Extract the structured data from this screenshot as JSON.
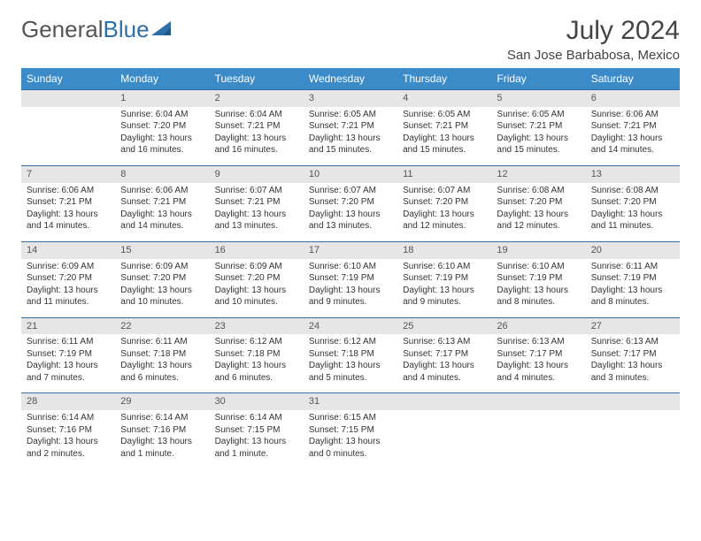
{
  "brand": {
    "part1": "General",
    "part2": "Blue"
  },
  "title": "July 2024",
  "location": "San Jose Barbabosa, Mexico",
  "colors": {
    "header_bg": "#3b8bc9",
    "header_text": "#ffffff",
    "daynum_bg": "#e6e6e6",
    "row_border": "#2f6fa7",
    "body_text": "#333333",
    "title_text": "#444444",
    "logo_gray": "#555555",
    "logo_blue": "#2f6fa7"
  },
  "day_headers": [
    "Sunday",
    "Monday",
    "Tuesday",
    "Wednesday",
    "Thursday",
    "Friday",
    "Saturday"
  ],
  "weeks": [
    {
      "nums": [
        "",
        "1",
        "2",
        "3",
        "4",
        "5",
        "6"
      ],
      "cells": [
        [],
        [
          "Sunrise: 6:04 AM",
          "Sunset: 7:20 PM",
          "Daylight: 13 hours and 16 minutes."
        ],
        [
          "Sunrise: 6:04 AM",
          "Sunset: 7:21 PM",
          "Daylight: 13 hours and 16 minutes."
        ],
        [
          "Sunrise: 6:05 AM",
          "Sunset: 7:21 PM",
          "Daylight: 13 hours and 15 minutes."
        ],
        [
          "Sunrise: 6:05 AM",
          "Sunset: 7:21 PM",
          "Daylight: 13 hours and 15 minutes."
        ],
        [
          "Sunrise: 6:05 AM",
          "Sunset: 7:21 PM",
          "Daylight: 13 hours and 15 minutes."
        ],
        [
          "Sunrise: 6:06 AM",
          "Sunset: 7:21 PM",
          "Daylight: 13 hours and 14 minutes."
        ]
      ]
    },
    {
      "nums": [
        "7",
        "8",
        "9",
        "10",
        "11",
        "12",
        "13"
      ],
      "cells": [
        [
          "Sunrise: 6:06 AM",
          "Sunset: 7:21 PM",
          "Daylight: 13 hours and 14 minutes."
        ],
        [
          "Sunrise: 6:06 AM",
          "Sunset: 7:21 PM",
          "Daylight: 13 hours and 14 minutes."
        ],
        [
          "Sunrise: 6:07 AM",
          "Sunset: 7:21 PM",
          "Daylight: 13 hours and 13 minutes."
        ],
        [
          "Sunrise: 6:07 AM",
          "Sunset: 7:20 PM",
          "Daylight: 13 hours and 13 minutes."
        ],
        [
          "Sunrise: 6:07 AM",
          "Sunset: 7:20 PM",
          "Daylight: 13 hours and 12 minutes."
        ],
        [
          "Sunrise: 6:08 AM",
          "Sunset: 7:20 PM",
          "Daylight: 13 hours and 12 minutes."
        ],
        [
          "Sunrise: 6:08 AM",
          "Sunset: 7:20 PM",
          "Daylight: 13 hours and 11 minutes."
        ]
      ]
    },
    {
      "nums": [
        "14",
        "15",
        "16",
        "17",
        "18",
        "19",
        "20"
      ],
      "cells": [
        [
          "Sunrise: 6:09 AM",
          "Sunset: 7:20 PM",
          "Daylight: 13 hours and 11 minutes."
        ],
        [
          "Sunrise: 6:09 AM",
          "Sunset: 7:20 PM",
          "Daylight: 13 hours and 10 minutes."
        ],
        [
          "Sunrise: 6:09 AM",
          "Sunset: 7:20 PM",
          "Daylight: 13 hours and 10 minutes."
        ],
        [
          "Sunrise: 6:10 AM",
          "Sunset: 7:19 PM",
          "Daylight: 13 hours and 9 minutes."
        ],
        [
          "Sunrise: 6:10 AM",
          "Sunset: 7:19 PM",
          "Daylight: 13 hours and 9 minutes."
        ],
        [
          "Sunrise: 6:10 AM",
          "Sunset: 7:19 PM",
          "Daylight: 13 hours and 8 minutes."
        ],
        [
          "Sunrise: 6:11 AM",
          "Sunset: 7:19 PM",
          "Daylight: 13 hours and 8 minutes."
        ]
      ]
    },
    {
      "nums": [
        "21",
        "22",
        "23",
        "24",
        "25",
        "26",
        "27"
      ],
      "cells": [
        [
          "Sunrise: 6:11 AM",
          "Sunset: 7:19 PM",
          "Daylight: 13 hours and 7 minutes."
        ],
        [
          "Sunrise: 6:11 AM",
          "Sunset: 7:18 PM",
          "Daylight: 13 hours and 6 minutes."
        ],
        [
          "Sunrise: 6:12 AM",
          "Sunset: 7:18 PM",
          "Daylight: 13 hours and 6 minutes."
        ],
        [
          "Sunrise: 6:12 AM",
          "Sunset: 7:18 PM",
          "Daylight: 13 hours and 5 minutes."
        ],
        [
          "Sunrise: 6:13 AM",
          "Sunset: 7:17 PM",
          "Daylight: 13 hours and 4 minutes."
        ],
        [
          "Sunrise: 6:13 AM",
          "Sunset: 7:17 PM",
          "Daylight: 13 hours and 4 minutes."
        ],
        [
          "Sunrise: 6:13 AM",
          "Sunset: 7:17 PM",
          "Daylight: 13 hours and 3 minutes."
        ]
      ]
    },
    {
      "nums": [
        "28",
        "29",
        "30",
        "31",
        "",
        "",
        ""
      ],
      "cells": [
        [
          "Sunrise: 6:14 AM",
          "Sunset: 7:16 PM",
          "Daylight: 13 hours and 2 minutes."
        ],
        [
          "Sunrise: 6:14 AM",
          "Sunset: 7:16 PM",
          "Daylight: 13 hours and 1 minute."
        ],
        [
          "Sunrise: 6:14 AM",
          "Sunset: 7:15 PM",
          "Daylight: 13 hours and 1 minute."
        ],
        [
          "Sunrise: 6:15 AM",
          "Sunset: 7:15 PM",
          "Daylight: 13 hours and 0 minutes."
        ],
        [],
        [],
        []
      ]
    }
  ]
}
